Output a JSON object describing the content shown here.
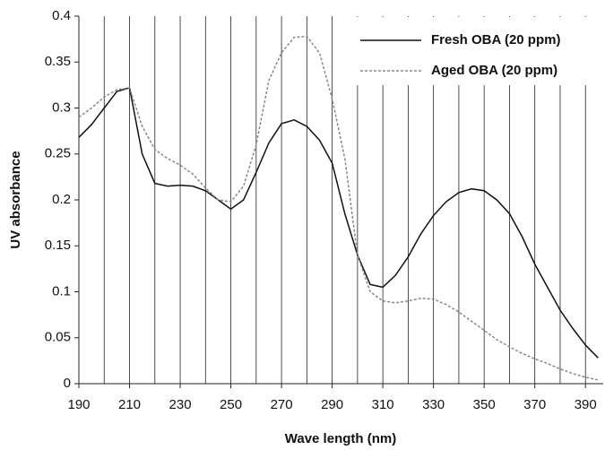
{
  "chart_data": {
    "type": "line",
    "xlabel": "Wave length (nm)",
    "ylabel": "UV absorbance",
    "x": [
      190,
      195,
      200,
      205,
      210,
      215,
      220,
      225,
      230,
      235,
      240,
      245,
      250,
      255,
      260,
      265,
      270,
      275,
      280,
      285,
      290,
      295,
      300,
      305,
      310,
      315,
      320,
      325,
      330,
      335,
      340,
      345,
      350,
      355,
      360,
      365,
      370,
      375,
      380,
      385,
      390,
      395
    ],
    "series": [
      {
        "name": "Fresh OBA (20 ppm)",
        "color": "#111111",
        "dash": "solid",
        "values": [
          0.268,
          0.282,
          0.3,
          0.318,
          0.322,
          0.25,
          0.218,
          0.215,
          0.216,
          0.215,
          0.21,
          0.2,
          0.19,
          0.2,
          0.23,
          0.262,
          0.283,
          0.287,
          0.28,
          0.265,
          0.24,
          0.185,
          0.14,
          0.108,
          0.105,
          0.118,
          0.138,
          0.163,
          0.183,
          0.198,
          0.208,
          0.212,
          0.21,
          0.2,
          0.185,
          0.16,
          0.13,
          0.105,
          0.08,
          0.06,
          0.042,
          0.028
        ]
      },
      {
        "name": "Aged OBA (20 ppm)",
        "color": "#888888",
        "dash": "dotted",
        "values": [
          0.29,
          0.3,
          0.312,
          0.32,
          0.322,
          0.28,
          0.255,
          0.245,
          0.238,
          0.228,
          0.213,
          0.2,
          0.198,
          0.215,
          0.26,
          0.33,
          0.36,
          0.377,
          0.378,
          0.36,
          0.31,
          0.245,
          0.14,
          0.1,
          0.09,
          0.088,
          0.09,
          0.093,
          0.092,
          0.086,
          0.078,
          0.068,
          0.058,
          0.048,
          0.04,
          0.033,
          0.027,
          0.022,
          0.016,
          0.011,
          0.007,
          0.004
        ]
      }
    ],
    "xlim": [
      190,
      397
    ],
    "xticks": [
      190,
      210,
      230,
      250,
      270,
      290,
      310,
      330,
      350,
      370,
      390
    ],
    "xgrid": [
      190,
      200,
      210,
      220,
      230,
      240,
      250,
      260,
      270,
      280,
      290,
      300,
      310,
      320,
      330,
      340,
      350,
      360,
      370,
      380,
      390
    ],
    "ylim": [
      0,
      0.4
    ],
    "yticks": [
      0,
      0.05,
      0.1,
      0.15,
      0.2,
      0.25,
      0.3,
      0.35,
      0.4
    ],
    "legend": "upper right"
  }
}
